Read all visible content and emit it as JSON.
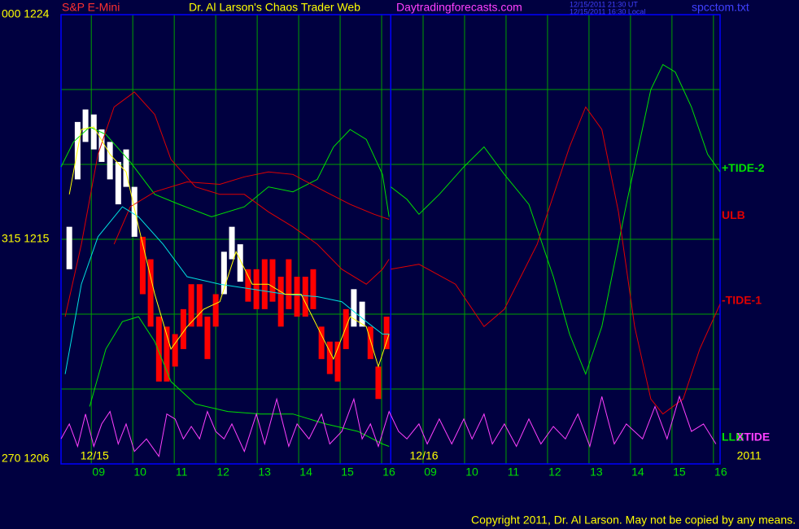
{
  "chart_data": {
    "type": "line",
    "title": "Dr. Al Larson's Chaos Trader Web",
    "instrument": "S&P E-Mini",
    "site": "Daytradingforecasts.com",
    "timestamps": [
      "12/15/2011 21:30 UT",
      "12/15/2011 16:30 Local"
    ],
    "file": "spcctom.txt",
    "copyright": "Copyright 2011, Dr. Al Larson. May not be copied by any means.",
    "xlim": [
      -0.73,
      15.16
    ],
    "ylim": [
      1206,
      1224
    ],
    "xticks": [
      {
        "value": 0,
        "label": "09"
      },
      {
        "value": 1,
        "label": "10"
      },
      {
        "value": 2,
        "label": "11"
      },
      {
        "value": 3,
        "label": "12"
      },
      {
        "value": 4,
        "label": "13"
      },
      {
        "value": 5,
        "label": "14"
      },
      {
        "value": 6,
        "label": "15"
      },
      {
        "value": 7,
        "label": "16"
      },
      {
        "value": 8,
        "label": "09"
      },
      {
        "value": 9,
        "label": "10"
      },
      {
        "value": 10,
        "label": "11"
      },
      {
        "value": 11,
        "label": "12"
      },
      {
        "value": 12,
        "label": "13"
      },
      {
        "value": 13,
        "label": "14"
      },
      {
        "value": 14,
        "label": "15"
      },
      {
        "value": 15,
        "label": "16"
      }
    ],
    "date_ticks": [
      {
        "value": 0.08,
        "label": "12/15"
      },
      {
        "value": 8.02,
        "label": "12/16"
      },
      {
        "value": 15.86,
        "label": "2011"
      }
    ],
    "yticks": [
      {
        "value": 1224,
        "label": "000  1224"
      },
      {
        "value": 1215,
        "label": "315  1215"
      },
      {
        "value": 1206,
        "label": "270  1206"
      }
    ],
    "ygrid": [
      1209,
      1212,
      1218,
      1221
    ],
    "day_break": 7.22,
    "grid": true,
    "grid_color": "#00a000",
    "frame_color": "#0000ff",
    "bars": {
      "x": [
        -0.53,
        -0.33,
        -0.14,
        0.06,
        0.25,
        0.45,
        0.65,
        0.84,
        1.04,
        1.24,
        1.43,
        1.63,
        1.82,
        2.02,
        2.22,
        2.41,
        2.61,
        2.8,
        3.0,
        3.2,
        3.39,
        3.59,
        3.78,
        3.98,
        4.18,
        4.37,
        4.57,
        4.76,
        4.96,
        5.16,
        5.35,
        5.55,
        5.75,
        5.94,
        6.14,
        6.33,
        6.53,
        6.73,
        6.92,
        7.12
      ],
      "high": [
        1215.5,
        1219.7,
        1220.2,
        1220.0,
        1219.4,
        1218.9,
        1218.1,
        1218.6,
        1217.1,
        1215.1,
        1214.2,
        1211.9,
        1211.5,
        1211.2,
        1212.2,
        1213.2,
        1213.2,
        1211.9,
        1212.8,
        1214.5,
        1215.5,
        1214.8,
        1213.8,
        1213.8,
        1214.2,
        1214.2,
        1213.5,
        1214.2,
        1213.5,
        1213.5,
        1213.8,
        1211.5,
        1210.9,
        1210.9,
        1212.2,
        1213.0,
        1212.5,
        1211.5,
        1209.9,
        1211.9
      ],
      "low": [
        1213.8,
        1217.4,
        1218.9,
        1218.6,
        1218.1,
        1217.4,
        1216.4,
        1217.1,
        1215.1,
        1212.8,
        1211.5,
        1209.3,
        1209.3,
        1209.9,
        1210.6,
        1211.5,
        1211.5,
        1210.2,
        1211.5,
        1212.8,
        1214.2,
        1213.3,
        1212.5,
        1212.2,
        1212.2,
        1212.5,
        1211.5,
        1212.2,
        1211.9,
        1211.9,
        1212.2,
        1210.2,
        1209.6,
        1209.3,
        1210.6,
        1211.5,
        1211.5,
        1210.2,
        1208.6,
        1210.6
      ],
      "colors": [
        "#ffffff",
        "#ffffff",
        "#ffffff",
        "#ffffff",
        "#ffffff",
        "#ffffff",
        "#ffffff",
        "#ffffff",
        "#ffffff",
        "#ff0000",
        "#ff0000",
        "#ff0000",
        "#ff0000",
        "#ff0000",
        "#ff0000",
        "#ff0000",
        "#ff0000",
        "#ff0000",
        "#ff0000",
        "#ffffff",
        "#ffffff",
        "#ffffff",
        "#ff0000",
        "#ff0000",
        "#ff0000",
        "#ff0000",
        "#ff0000",
        "#ff0000",
        "#ff0000",
        "#ff0000",
        "#ff0000",
        "#ff0000",
        "#ff0000",
        "#ff0000",
        "#ff0000",
        "#ffffff",
        "#ffffff",
        "#ff0000",
        "#ff0000",
        "#ff0000"
      ]
    },
    "series": [
      {
        "name": "+TIDE-2",
        "color": "#00e000",
        "x": [
          -0.73,
          -0.43,
          -0.04,
          0.35,
          0.94,
          1.53,
          2.12,
          2.9,
          3.69,
          4.27,
          4.86,
          5.45,
          5.84,
          6.24,
          6.63,
          7.02,
          7.18,
          7.2,
          7.22,
          7.61,
          7.9,
          8.39,
          8.98,
          9.47,
          9.96,
          10.55,
          11.14,
          11.53,
          11.92,
          12.31,
          12.9,
          13.49,
          13.78,
          14.08,
          14.47,
          14.86,
          15.16
        ],
        "values": [
          1217.9,
          1218.9,
          1219.5,
          1219.2,
          1218.1,
          1216.8,
          1216.4,
          1215.9,
          1216.3,
          1217.1,
          1216.9,
          1217.4,
          1218.7,
          1219.4,
          1219.0,
          1217.6,
          1215.9,
          null,
          1217.1,
          1216.6,
          1216.0,
          1216.8,
          1217.9,
          1218.7,
          1217.6,
          1216.4,
          1213.5,
          1211.2,
          1209.6,
          1211.5,
          1216.4,
          1221.0,
          1222.0,
          1221.7,
          1220.3,
          1218.4,
          1217.7
        ]
      },
      {
        "name": "ULB",
        "color": "#e00000",
        "x": [
          0.55,
          0.94,
          1.53,
          2.31,
          3.1,
          3.69,
          4.27,
          4.86,
          5.65,
          6.24,
          6.82,
          7.18
        ],
        "values": [
          1214.8,
          1216.3,
          1216.9,
          1217.3,
          1217.2,
          1217.5,
          1217.7,
          1217.6,
          1216.9,
          1216.4,
          1216.0,
          1215.8
        ]
      },
      {
        "name": "-TIDE-1",
        "color": "#e00000",
        "x": [
          -0.63,
          -0.24,
          0.16,
          0.55,
          1.04,
          1.53,
          1.92,
          2.51,
          3.1,
          3.69,
          4.27,
          4.86,
          5.45,
          6.04,
          6.63,
          7.02,
          7.18,
          7.2,
          7.22,
          7.9,
          8.78,
          9.47,
          9.96,
          10.75,
          11.53,
          11.92,
          12.31,
          12.71,
          13.1,
          13.49,
          13.78,
          14.27,
          14.67,
          15.16
        ],
        "values": [
          1211.9,
          1214.8,
          1218.4,
          1220.3,
          1220.9,
          1220.0,
          1218.2,
          1217.1,
          1216.8,
          1216.8,
          1216.1,
          1215.5,
          1214.8,
          1213.8,
          1213.2,
          1213.8,
          1214.2,
          null,
          1213.8,
          1214.0,
          1213.2,
          1211.5,
          1212.2,
          1214.8,
          1218.7,
          1220.3,
          1219.4,
          1216.1,
          1211.5,
          1208.6,
          1208.0,
          1208.6,
          1210.6,
          1212.4
        ]
      },
      {
        "name": "LLB",
        "color": "#00e000",
        "x": [
          -0.04,
          0.35,
          0.75,
          1.14,
          1.53,
          1.92,
          2.51,
          3.29,
          4.08,
          4.86,
          5.65,
          6.43,
          7.02,
          7.18
        ],
        "values": [
          1208.3,
          1210.6,
          1211.7,
          1211.9,
          1210.9,
          1209.3,
          1208.4,
          1208.1,
          1208.0,
          1208.0,
          1207.6,
          1207.3,
          1206.8,
          1206.7
        ]
      },
      {
        "name": "XTIDE",
        "color": "#ff40ff",
        "x": [
          -0.73,
          -0.53,
          -0.33,
          -0.14,
          0.06,
          0.25,
          0.45,
          0.65,
          0.84,
          1.04,
          1.33,
          1.63,
          1.82,
          2.02,
          2.22,
          2.41,
          2.61,
          2.8,
          3.0,
          3.2,
          3.39,
          3.69,
          3.98,
          4.18,
          4.47,
          4.76,
          4.96,
          5.25,
          5.55,
          5.75,
          6.04,
          6.33,
          6.53,
          6.73,
          6.92,
          7.18,
          7.41,
          7.61,
          7.9,
          8.1,
          8.39,
          8.69,
          8.98,
          9.18,
          9.47,
          9.67,
          9.96,
          10.25,
          10.55,
          10.84,
          11.14,
          11.43,
          11.73,
          12.02,
          12.31,
          12.61,
          12.9,
          13.29,
          13.59,
          13.88,
          14.18,
          14.47,
          14.76,
          15.06
        ],
        "values": [
          1207.0,
          1207.6,
          1206.7,
          1208.0,
          1206.7,
          1207.6,
          1208.1,
          1206.8,
          1207.6,
          1206.5,
          1207.0,
          1206.3,
          1208.0,
          1207.8,
          1207.0,
          1207.5,
          1207.0,
          1208.1,
          1207.3,
          1207.0,
          1207.6,
          1206.5,
          1208.0,
          1206.8,
          1208.6,
          1206.7,
          1207.6,
          1207.0,
          1208.0,
          1206.8,
          1207.3,
          1208.6,
          1207.0,
          1207.6,
          1206.7,
          1208.1,
          1207.3,
          1207.0,
          1207.6,
          1206.8,
          1207.8,
          1206.8,
          1207.8,
          1207.0,
          1208.0,
          1206.8,
          1207.6,
          1206.7,
          1207.8,
          1206.8,
          1207.5,
          1207.0,
          1208.0,
          1206.7,
          1208.7,
          1206.8,
          1207.6,
          1207.0,
          1208.3,
          1207.0,
          1208.7,
          1207.3,
          1207.6,
          1206.8
        ]
      },
      {
        "color": "#00e0e0",
        "x": [
          -0.63,
          -0.24,
          0.16,
          0.75,
          1.14,
          1.73,
          2.31,
          3.1,
          3.88,
          4.67,
          5.45,
          6.04,
          6.63,
          7.02,
          7.18
        ],
        "values": [
          1209.6,
          1213.2,
          1215.1,
          1216.3,
          1215.9,
          1214.8,
          1213.5,
          1213.2,
          1213.0,
          1212.8,
          1212.7,
          1212.5,
          1211.7,
          1211.2,
          1211.2
        ]
      },
      {
        "color": "#ffff00",
        "x": [
          -0.53,
          -0.24,
          0.06,
          0.45,
          0.84,
          1.14,
          1.53,
          1.92,
          2.31,
          2.71,
          3.1,
          3.49,
          3.88,
          4.27,
          4.67,
          5.06,
          5.45,
          5.84,
          6.24,
          6.63,
          6.92,
          7.18
        ],
        "values": [
          1216.8,
          1219.4,
          1219.5,
          1218.4,
          1217.7,
          1215.5,
          1212.8,
          1210.6,
          1211.5,
          1212.2,
          1212.5,
          1214.5,
          1213.2,
          1213.2,
          1212.8,
          1212.8,
          1211.5,
          1210.2,
          1211.9,
          1211.5,
          1209.9,
          1211.2
        ]
      }
    ]
  }
}
